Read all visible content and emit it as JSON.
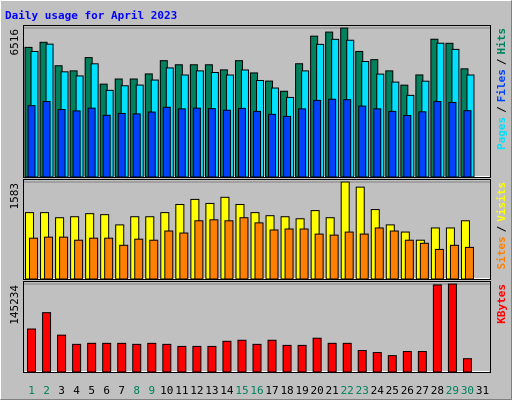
{
  "chart_data": [
    {
      "type": "bar",
      "title": "Daily usage for April 2023",
      "legend_separator": "/",
      "ylim": [
        0,
        6516
      ],
      "yticks": [
        6516
      ],
      "grid": true,
      "series": [
        {
          "name": "Hits",
          "color": "#00805c",
          "values": [
            5668,
            5891,
            4865,
            4642,
            5222,
            4061,
            4285,
            4285,
            4508,
            5088,
            4909,
            4909,
            4909,
            4686,
            5088,
            4552,
            4195,
            3749,
            4954,
            6159,
            6337,
            6516,
            5490,
            5132,
            4642,
            4017,
            4463,
            6025,
            5847,
            4731,
            null
          ]
        },
        {
          "name": "Files",
          "color": "#0040ff",
          "values": [
            3120,
            3300,
            2950,
            2890,
            3010,
            2700,
            2780,
            2760,
            2840,
            3050,
            2980,
            3010,
            2990,
            2920,
            3000,
            2870,
            2740,
            2650,
            2980,
            3350,
            3400,
            3380,
            3100,
            2980,
            2870,
            2690,
            2850,
            3300,
            3260,
            2900,
            null
          ]
        },
        {
          "name": "Pages",
          "color": "#00e0ff",
          "values": [
            5490,
            5810,
            4600,
            4420,
            4950,
            3790,
            3990,
            4020,
            4240,
            4770,
            4460,
            4640,
            4570,
            4460,
            4680,
            4220,
            3890,
            3480,
            4640,
            5800,
            6020,
            5980,
            5050,
            4500,
            4150,
            3570,
            4190,
            5850,
            5580,
            4460,
            null
          ]
        }
      ]
    },
    {
      "type": "bar",
      "legend_separator": "/",
      "ylim": [
        0,
        1583
      ],
      "yticks": [
        1583
      ],
      "grid": true,
      "series": [
        {
          "name": "Visits",
          "color": "#ffff00",
          "values": [
            1083,
            1083,
            1000,
            1016,
            1066,
            1050,
            883,
            1016,
            1016,
            1083,
            1216,
            1299,
            1233,
            1333,
            1216,
            1083,
            1033,
            1016,
            983,
            1116,
            1000,
            1583,
            1499,
            1133,
            883,
            766,
            633,
            833,
            833,
            950,
            null
          ]
        },
        {
          "name": "Sites",
          "color": "#ff8000",
          "values": [
            666,
            683,
            683,
            633,
            666,
            666,
            550,
            650,
            633,
            783,
            750,
            950,
            966,
            950,
            1000,
            916,
            800,
            816,
            816,
            733,
            716,
            766,
            733,
            833,
            783,
            633,
            583,
            483,
            550,
            516,
            null
          ]
        }
      ]
    },
    {
      "type": "bar",
      "ylim": [
        0,
        145234
      ],
      "yticks": [
        145234
      ],
      "grid": true,
      "categories": [
        "1",
        "2",
        "3",
        "4",
        "5",
        "6",
        "7",
        "8",
        "9",
        "10",
        "11",
        "12",
        "13",
        "14",
        "15",
        "16",
        "17",
        "18",
        "19",
        "20",
        "21",
        "22",
        "23",
        "24",
        "25",
        "26",
        "27",
        "28",
        "29",
        "30",
        "31"
      ],
      "category_colors": [
        "#00805c",
        "#00805c",
        "#000000",
        "#000000",
        "#000000",
        "#000000",
        "#000000",
        "#00805c",
        "#00805c",
        "#000000",
        "#000000",
        "#000000",
        "#000000",
        "#000000",
        "#00805c",
        "#00805c",
        "#000000",
        "#000000",
        "#000000",
        "#000000",
        "#000000",
        "#00805c",
        "#00805c",
        "#000000",
        "#000000",
        "#000000",
        "#000000",
        "#000000",
        "#00805c",
        "#00805c",
        "#000000"
      ],
      "series": [
        {
          "name": "KBytes",
          "color": "#ff0000",
          "values": [
            70938,
            97962,
            60804,
            45603,
            47292,
            47292,
            47292,
            45603,
            47292,
            45603,
            42225,
            42225,
            42225,
            50670,
            52359,
            45603,
            52359,
            43914,
            43914,
            55737,
            47292,
            47292,
            35469,
            32091,
            27024,
            33780,
            33780,
            143565,
            145234,
            21957,
            null
          ]
        }
      ]
    }
  ]
}
